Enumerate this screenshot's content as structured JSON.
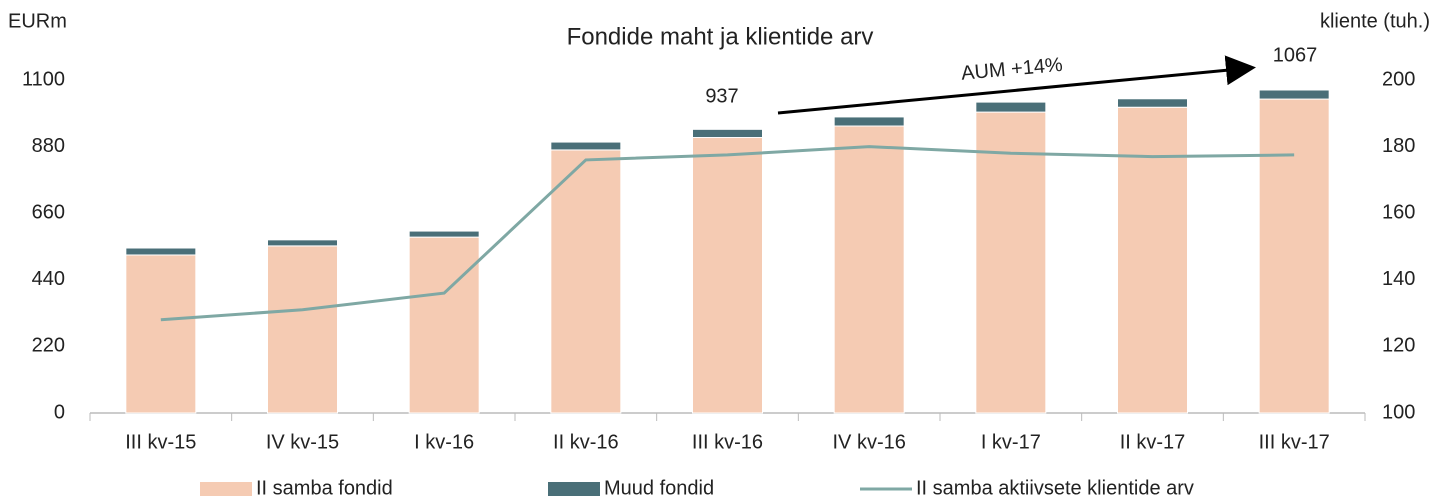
{
  "chart_data": {
    "type": "bar",
    "title": "Fondide maht ja klientide arv",
    "y_label": "EURm",
    "y2_label": "kliente (tuh.)",
    "categories": [
      "III kv-15",
      "IV kv-15",
      "I kv-16",
      "II kv-16",
      "III kv-16",
      "IV kv-16",
      "I kv-17",
      "II kv-17",
      "III kv-17"
    ],
    "series": [
      {
        "name": "II samba fondid",
        "color": "#f5cbb3",
        "values": [
          522,
          552,
          581,
          869,
          910,
          948,
          994,
          1010,
          1037
        ]
      },
      {
        "name": "Muud fondid",
        "color": "#4a6f78",
        "values": [
          23,
          20,
          20,
          26,
          27,
          30,
          33,
          28,
          30
        ]
      },
      {
        "name": "II samba aktiivsete klientide arv",
        "color": "#7fa8a4",
        "type": "line",
        "axis": "y2",
        "values": [
          128,
          131,
          136,
          176,
          177.5,
          180,
          178,
          177,
          177.5
        ]
      }
    ],
    "annotations": [
      "937",
      "1067",
      "AUM +14%"
    ],
    "ylim": [
      0,
      1100
    ],
    "yticks": [
      0,
      220,
      440,
      660,
      880,
      1100
    ],
    "y2lim": [
      100,
      200
    ],
    "y2ticks": [
      100,
      120,
      140,
      160,
      180,
      200
    ],
    "legend": "bottom"
  }
}
